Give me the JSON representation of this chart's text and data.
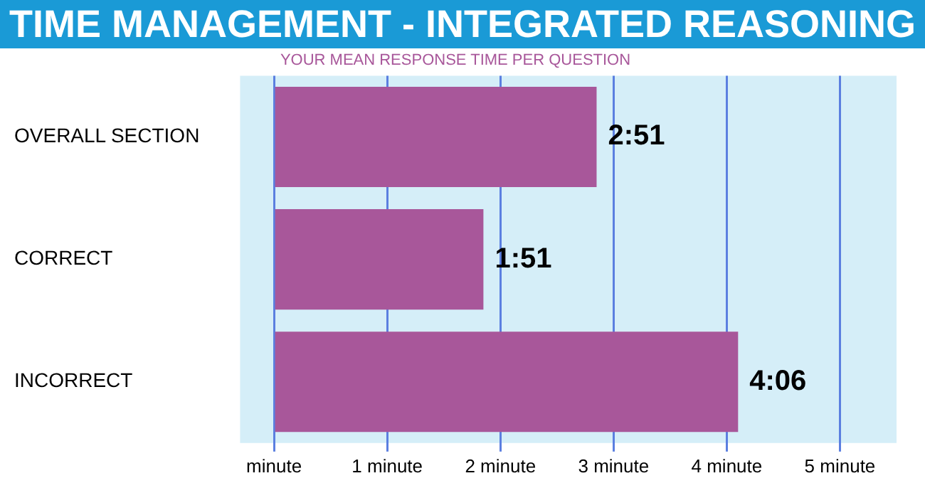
{
  "chart_data": {
    "type": "bar",
    "orientation": "horizontal",
    "title": "TIME MANAGEMENT - INTEGRATED REASONING",
    "subtitle": "YOUR MEAN RESPONSE TIME PER QUESTION",
    "categories": [
      "OVERALL SECTION",
      "CORRECT",
      "INCORRECT"
    ],
    "values": [
      2.85,
      1.85,
      4.1
    ],
    "value_labels": [
      "2:51",
      "1:51",
      "4:06"
    ],
    "color": "#a8579a",
    "xlim": [
      -0.3,
      5.5
    ],
    "xticks": [
      {
        "value": 0,
        "label": "minute"
      },
      {
        "value": 1,
        "label": "1 minute"
      },
      {
        "value": 2,
        "label": "2 minute"
      },
      {
        "value": 3,
        "label": "3 minute"
      },
      {
        "value": 4,
        "label": "4 minute"
      },
      {
        "value": 5,
        "label": "5 minute"
      }
    ],
    "grid": "x",
    "legend": false
  }
}
